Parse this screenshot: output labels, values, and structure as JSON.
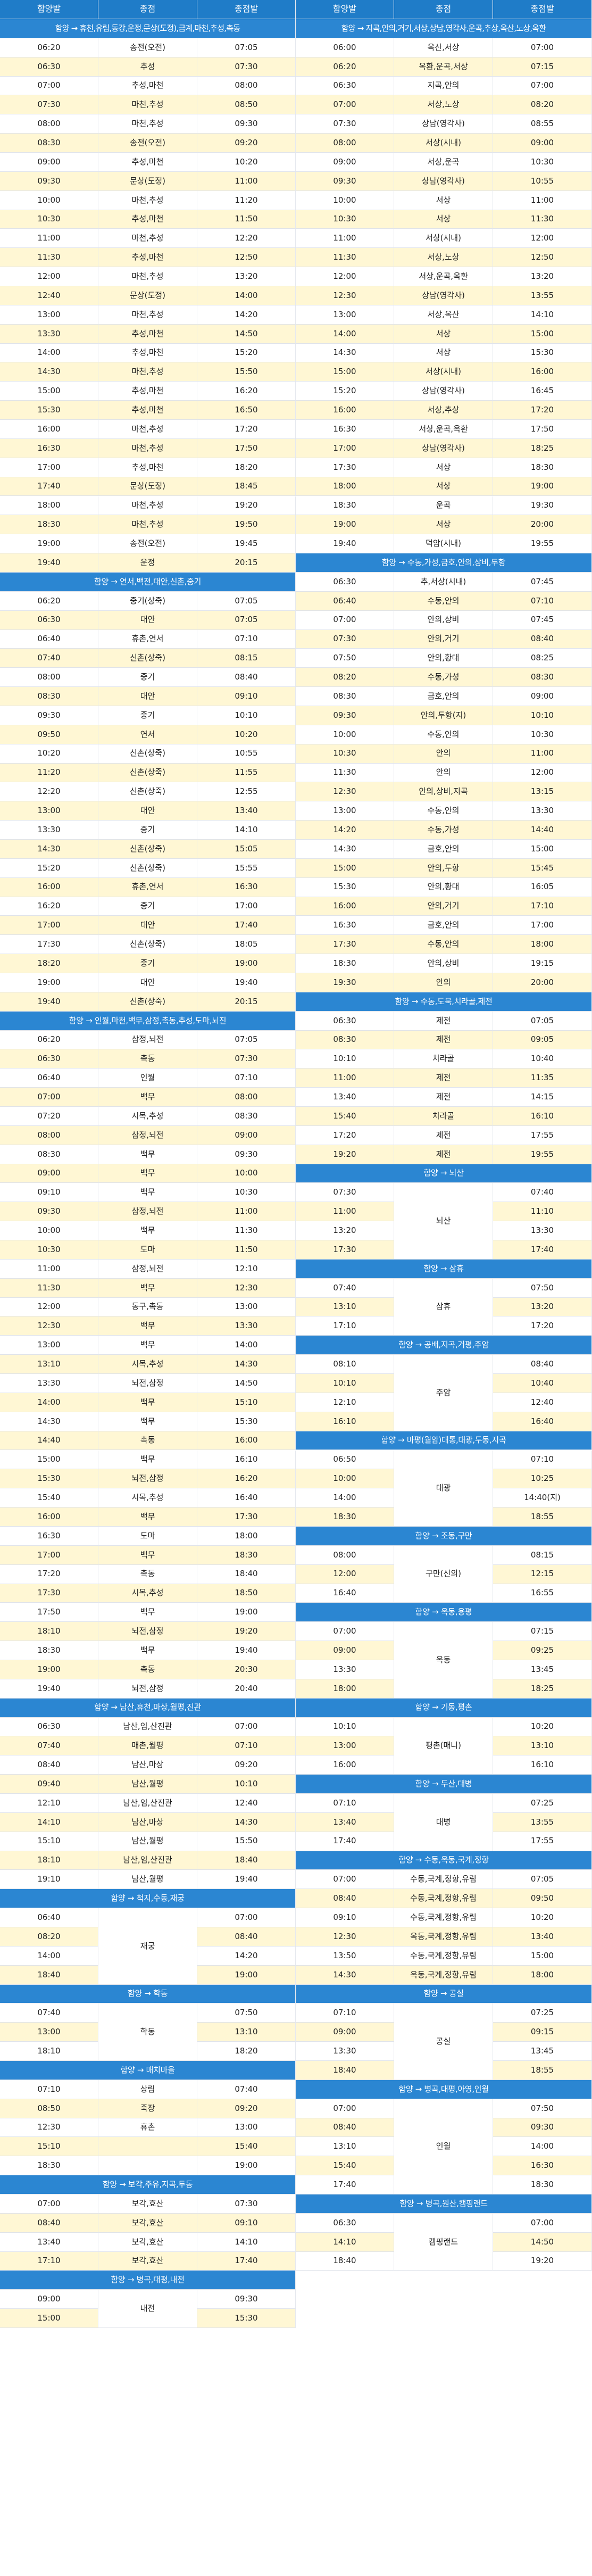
{
  "colors": {
    "header": "#1f7cc8",
    "section": "#2b86d2",
    "row_odd": "#ffffff",
    "row_even": "#fff7d4",
    "grid": "#dfe3ea"
  },
  "headers": [
    "함양발",
    "종점",
    "종점발",
    "함양발",
    "종점",
    "종점발"
  ],
  "left": [
    {
      "title": "함양 → 휴천,유림,동강,운정,문상(도정),금계,마천,추성,촉동"
    },
    {
      "r": [
        "06:20",
        "송전(오전)",
        "07:05"
      ]
    },
    {
      "r": [
        "06:30",
        "추성",
        "07:30"
      ]
    },
    {
      "r": [
        "07:00",
        "추성,마천",
        "08:00"
      ]
    },
    {
      "r": [
        "07:30",
        "마천,추성",
        "08:50"
      ]
    },
    {
      "r": [
        "08:00",
        "마천,추성",
        "09:30"
      ]
    },
    {
      "r": [
        "08:30",
        "송전(오전)",
        "09:20"
      ]
    },
    {
      "r": [
        "09:00",
        "추성,마천",
        "10:20"
      ]
    },
    {
      "r": [
        "09:30",
        "문상(도정)",
        "11:00"
      ]
    },
    {
      "r": [
        "10:00",
        "마천,추성",
        "11:20"
      ]
    },
    {
      "r": [
        "10:30",
        "추성,마천",
        "11:50"
      ]
    },
    {
      "r": [
        "11:00",
        "마천,추성",
        "12:20"
      ]
    },
    {
      "r": [
        "11:30",
        "추성,마천",
        "12:50"
      ]
    },
    {
      "r": [
        "12:00",
        "마천,추성",
        "13:20"
      ]
    },
    {
      "r": [
        "12:40",
        "문상(도정)",
        "14:00"
      ]
    },
    {
      "r": [
        "13:00",
        "마천,추성",
        "14:20"
      ]
    },
    {
      "r": [
        "13:30",
        "추성,마천",
        "14:50"
      ]
    },
    {
      "r": [
        "14:00",
        "추성,마천",
        "15:20"
      ]
    },
    {
      "r": [
        "14:30",
        "마천,추성",
        "15:50"
      ]
    },
    {
      "r": [
        "15:00",
        "추성,마천",
        "16:20"
      ]
    },
    {
      "r": [
        "15:30",
        "추성,마천",
        "16:50"
      ]
    },
    {
      "r": [
        "16:00",
        "마천,추성",
        "17:20"
      ]
    },
    {
      "r": [
        "16:30",
        "마천,추성",
        "17:50"
      ]
    },
    {
      "r": [
        "17:00",
        "추성,마천",
        "18:20"
      ]
    },
    {
      "r": [
        "17:40",
        "문상(도정)",
        "18:45"
      ]
    },
    {
      "r": [
        "18:00",
        "마천,추성",
        "19:20"
      ]
    },
    {
      "r": [
        "18:30",
        "마천,추성",
        "19:50"
      ]
    },
    {
      "r": [
        "19:00",
        "송전(오전)",
        "19:45"
      ]
    },
    {
      "r": [
        "19:40",
        "운정",
        "20:15"
      ]
    },
    {
      "title": "함양 → 연서,백전,대안,신촌,중기"
    },
    {
      "r": [
        "06:20",
        "중기(상죽)",
        "07:05"
      ]
    },
    {
      "r": [
        "06:30",
        "대안",
        "07:05"
      ]
    },
    {
      "r": [
        "06:40",
        "휴촌,연서",
        "07:10"
      ]
    },
    {
      "r": [
        "07:40",
        "신촌(상죽)",
        "08:15"
      ]
    },
    {
      "r": [
        "08:00",
        "중기",
        "08:40"
      ]
    },
    {
      "r": [
        "08:30",
        "대안",
        "09:10"
      ]
    },
    {
      "r": [
        "09:30",
        "중기",
        "10:10"
      ]
    },
    {
      "r": [
        "09:50",
        "연서",
        "10:20"
      ]
    },
    {
      "r": [
        "10:20",
        "신촌(상죽)",
        "10:55"
      ]
    },
    {
      "r": [
        "11:20",
        "신촌(상죽)",
        "11:55"
      ]
    },
    {
      "r": [
        "12:20",
        "신촌(상죽)",
        "12:55"
      ]
    },
    {
      "r": [
        "13:00",
        "대안",
        "13:40"
      ]
    },
    {
      "r": [
        "13:30",
        "중기",
        "14:10"
      ]
    },
    {
      "r": [
        "14:30",
        "신촌(상죽)",
        "15:05"
      ]
    },
    {
      "r": [
        "15:20",
        "신촌(상죽)",
        "15:55"
      ]
    },
    {
      "r": [
        "16:00",
        "휴촌,연서",
        "16:30"
      ]
    },
    {
      "r": [
        "16:20",
        "중기",
        "17:00"
      ]
    },
    {
      "r": [
        "17:00",
        "대안",
        "17:40"
      ]
    },
    {
      "r": [
        "17:30",
        "신촌(상죽)",
        "18:05"
      ]
    },
    {
      "r": [
        "18:20",
        "중기",
        "19:00"
      ]
    },
    {
      "r": [
        "19:00",
        "대안",
        "19:40"
      ]
    },
    {
      "r": [
        "19:40",
        "신촌(상죽)",
        "20:15"
      ]
    },
    {
      "title": "함양 → 인월,마천,백무,삼정,촉동,추성,도마,뇌진"
    },
    {
      "r": [
        "06:20",
        "삼정,뇌전",
        "07:05"
      ]
    },
    {
      "r": [
        "06:30",
        "촉동",
        "07:30"
      ]
    },
    {
      "r": [
        "06:40",
        "인월",
        "07:10"
      ]
    },
    {
      "r": [
        "07:00",
        "백무",
        "08:00"
      ]
    },
    {
      "r": [
        "07:20",
        "시목,추성",
        "08:30"
      ]
    },
    {
      "r": [
        "08:00",
        "삼정,뇌전",
        "09:00"
      ]
    },
    {
      "r": [
        "08:30",
        "백무",
        "09:30"
      ]
    },
    {
      "r": [
        "09:00",
        "백무",
        "10:00"
      ]
    },
    {
      "r": [
        "09:10",
        "백무",
        "10:30"
      ]
    },
    {
      "r": [
        "09:30",
        "삼정,뇌전",
        "11:00"
      ]
    },
    {
      "r": [
        "10:00",
        "백무",
        "11:30"
      ]
    },
    {
      "r": [
        "10:30",
        "도마",
        "11:50"
      ]
    },
    {
      "r": [
        "11:00",
        "삼정,뇌전",
        "12:10"
      ]
    },
    {
      "r": [
        "11:30",
        "백무",
        "12:30"
      ]
    },
    {
      "r": [
        "12:00",
        "동구,촉동",
        "13:00"
      ]
    },
    {
      "r": [
        "12:30",
        "백무",
        "13:30"
      ]
    },
    {
      "r": [
        "13:00",
        "백무",
        "14:00"
      ]
    },
    {
      "r": [
        "13:10",
        "시목,추성",
        "14:30"
      ]
    },
    {
      "r": [
        "13:30",
        "뇌전,삼정",
        "14:50"
      ]
    },
    {
      "r": [
        "14:00",
        "백무",
        "15:10"
      ]
    },
    {
      "r": [
        "14:30",
        "백무",
        "15:30"
      ]
    },
    {
      "r": [
        "14:40",
        "촉동",
        "16:00"
      ]
    },
    {
      "r": [
        "15:00",
        "백무",
        "16:10"
      ]
    },
    {
      "r": [
        "15:30",
        "뇌전,삼정",
        "16:20"
      ]
    },
    {
      "r": [
        "15:40",
        "시목,추성",
        "16:40"
      ]
    },
    {
      "r": [
        "16:00",
        "백무",
        "17:30"
      ]
    },
    {
      "r": [
        "16:30",
        "도마",
        "18:00"
      ]
    },
    {
      "r": [
        "17:00",
        "백무",
        "18:30"
      ]
    },
    {
      "r": [
        "17:20",
        "촉동",
        "18:40"
      ]
    },
    {
      "r": [
        "17:30",
        "시목,추성",
        "18:50"
      ]
    },
    {
      "r": [
        "17:50",
        "백무",
        "19:00"
      ]
    },
    {
      "r": [
        "18:10",
        "뇌전,삼정",
        "19:20"
      ]
    },
    {
      "r": [
        "18:30",
        "백무",
        "19:40"
      ]
    },
    {
      "r": [
        "19:00",
        "촉동",
        "20:30"
      ]
    },
    {
      "r": [
        "19:40",
        "뇌전,삼정",
        "20:40"
      ]
    },
    {
      "title": "함양 → 남산,휴천,마상,월평,진관"
    },
    {
      "r": [
        "06:30",
        "남산,임,산진관",
        "07:00"
      ]
    },
    {
      "r": [
        "07:40",
        "매촌,월평",
        "07:10"
      ]
    },
    {
      "r": [
        "08:40",
        "남산,마상",
        "09:20"
      ]
    },
    {
      "r": [
        "09:40",
        "남산,월평",
        "10:10"
      ]
    },
    {
      "r": [
        "12:10",
        "남산,임,산진관",
        "12:40"
      ]
    },
    {
      "r": [
        "14:10",
        "남산,마상",
        "14:30"
      ]
    },
    {
      "r": [
        "15:10",
        "남산,월평",
        "15:50"
      ]
    },
    {
      "r": [
        "18:10",
        "남산,임,산진관",
        "18:40"
      ]
    },
    {
      "r": [
        "19:10",
        "남산,월평",
        "19:40"
      ]
    },
    {
      "title": "함양 → 척지,수동,재궁"
    },
    {
      "g": "재궁",
      "r": [
        [
          "06:40",
          "07:00"
        ],
        [
          "08:20",
          "08:40"
        ],
        [
          "14:00",
          "14:20"
        ],
        [
          "18:40",
          "19:00"
        ]
      ]
    },
    {
      "title": "함양 → 학동"
    },
    {
      "g": "학동",
      "r": [
        [
          "07:40",
          "07:50"
        ],
        [
          "13:00",
          "13:10"
        ],
        [
          "18:10",
          "18:20"
        ]
      ]
    },
    {
      "title": "함양 → 매치마을"
    },
    {
      "r": [
        "07:10",
        "상림",
        "07:40"
      ]
    },
    {
      "r": [
        "08:50",
        "죽장",
        "09:20"
      ]
    },
    {
      "r": [
        "12:30",
        "휴촌",
        "13:00"
      ]
    },
    {
      "r": [
        "15:10",
        "",
        "15:40"
      ]
    },
    {
      "r": [
        "18:30",
        "",
        "19:00"
      ]
    },
    {
      "title": "함양 → 보각,주유,지곡,두동"
    },
    {
      "r": [
        "07:00",
        "보각,효산",
        "07:30"
      ]
    },
    {
      "r": [
        "08:40",
        "보각,효산",
        "09:10"
      ]
    },
    {
      "r": [
        "13:40",
        "보각,효산",
        "14:10"
      ]
    },
    {
      "r": [
        "17:10",
        "보각,효산",
        "17:40"
      ]
    },
    {
      "title": "함양 → 병곡,대평,내전"
    },
    {
      "g": "내전",
      "r": [
        [
          "09:00",
          "09:30"
        ],
        [
          "15:00",
          "15:30"
        ]
      ]
    }
  ],
  "right": [
    {
      "title": "함양 → 지곡,안의,거기,서상,상남,영각사,운곡,추상,옥산,노상,옥환"
    },
    {
      "r": [
        "06:00",
        "옥산,서상",
        "07:00"
      ]
    },
    {
      "r": [
        "06:20",
        "옥환,운곡,서상",
        "07:15"
      ]
    },
    {
      "r": [
        "06:30",
        "지곡,안의",
        "07:00"
      ]
    },
    {
      "r": [
        "07:00",
        "서상,노상",
        "08:20"
      ]
    },
    {
      "r": [
        "07:30",
        "상남(영각사)",
        "08:55"
      ]
    },
    {
      "r": [
        "08:00",
        "서상(시내)",
        "09:00"
      ]
    },
    {
      "r": [
        "09:00",
        "서상,운곡",
        "10:30"
      ]
    },
    {
      "r": [
        "09:30",
        "상남(영각사)",
        "10:55"
      ]
    },
    {
      "r": [
        "10:00",
        "서상",
        "11:00"
      ]
    },
    {
      "r": [
        "10:30",
        "서상",
        "11:30"
      ]
    },
    {
      "r": [
        "11:00",
        "서상(시내)",
        "12:00"
      ]
    },
    {
      "r": [
        "11:30",
        "서상,노상",
        "12:50"
      ]
    },
    {
      "r": [
        "12:00",
        "서상,운곡,옥환",
        "13:20"
      ]
    },
    {
      "r": [
        "12:30",
        "상남(영각사)",
        "13:55"
      ]
    },
    {
      "r": [
        "13:00",
        "서상,옥산",
        "14:10"
      ]
    },
    {
      "r": [
        "14:00",
        "서상",
        "15:00"
      ]
    },
    {
      "r": [
        "14:30",
        "서상",
        "15:30"
      ]
    },
    {
      "r": [
        "15:00",
        "서상(시내)",
        "16:00"
      ]
    },
    {
      "r": [
        "15:20",
        "상남(영각사)",
        "16:45"
      ]
    },
    {
      "r": [
        "16:00",
        "서상,추상",
        "17:20"
      ]
    },
    {
      "r": [
        "16:30",
        "서상,운곡,옥환",
        "17:50"
      ]
    },
    {
      "r": [
        "17:00",
        "상남(영각사)",
        "18:25"
      ]
    },
    {
      "r": [
        "17:30",
        "서상",
        "18:30"
      ]
    },
    {
      "r": [
        "18:00",
        "서상",
        "19:00"
      ]
    },
    {
      "r": [
        "18:30",
        "운곡",
        "19:30"
      ]
    },
    {
      "r": [
        "19:00",
        "서상",
        "20:00"
      ]
    },
    {
      "r": [
        "19:40",
        "덕암(시내)",
        "19:55"
      ]
    },
    {
      "title": "함양 → 수동,가성,금호,안의,상비,두항"
    },
    {
      "r": [
        "06:30",
        "추,서상(시내)",
        "07:45"
      ]
    },
    {
      "r": [
        "06:40",
        "수동,안의",
        "07:10"
      ]
    },
    {
      "r": [
        "07:00",
        "안의,상비",
        "07:45"
      ]
    },
    {
      "r": [
        "07:30",
        "안의,거기",
        "08:40"
      ]
    },
    {
      "r": [
        "07:50",
        "안의,황대",
        "08:25"
      ]
    },
    {
      "r": [
        "08:20",
        "수동,가성",
        "08:30"
      ]
    },
    {
      "r": [
        "08:30",
        "금호,안의",
        "09:00"
      ]
    },
    {
      "r": [
        "09:30",
        "안의,두항(지)",
        "10:10"
      ]
    },
    {
      "r": [
        "10:00",
        "수동,안의",
        "10:30"
      ]
    },
    {
      "r": [
        "10:30",
        "안의",
        "11:00"
      ]
    },
    {
      "r": [
        "11:30",
        "안의",
        "12:00"
      ]
    },
    {
      "r": [
        "12:30",
        "안의,상비,지곡",
        "13:15"
      ]
    },
    {
      "r": [
        "13:00",
        "수동,안의",
        "13:30"
      ]
    },
    {
      "r": [
        "14:20",
        "수동,가성",
        "14:40"
      ]
    },
    {
      "r": [
        "14:30",
        "금호,안의",
        "15:00"
      ]
    },
    {
      "r": [
        "15:00",
        "안의,두항",
        "15:45"
      ]
    },
    {
      "r": [
        "15:30",
        "안의,황대",
        "16:05"
      ]
    },
    {
      "r": [
        "16:00",
        "안의,거기",
        "17:10"
      ]
    },
    {
      "r": [
        "16:30",
        "금호,안의",
        "17:00"
      ]
    },
    {
      "r": [
        "17:30",
        "수동,안의",
        "18:00"
      ]
    },
    {
      "r": [
        "18:30",
        "안의,상비",
        "19:15"
      ]
    },
    {
      "r": [
        "19:30",
        "안의",
        "20:00"
      ]
    },
    {
      "title": "함양 → 수동,도북,치라골,제전"
    },
    {
      "r": [
        "06:30",
        "제전",
        "07:05"
      ]
    },
    {
      "r": [
        "08:30",
        "제전",
        "09:05"
      ]
    },
    {
      "r": [
        "10:10",
        "치라골",
        "10:40"
      ]
    },
    {
      "r": [
        "11:00",
        "제전",
        "11:35"
      ]
    },
    {
      "r": [
        "13:40",
        "제전",
        "14:15"
      ]
    },
    {
      "r": [
        "15:40",
        "치라골",
        "16:10"
      ]
    },
    {
      "r": [
        "17:20",
        "제전",
        "17:55"
      ]
    },
    {
      "r": [
        "19:20",
        "제전",
        "19:55"
      ]
    },
    {
      "title": "함양 → 뇌산"
    },
    {
      "g": "뇌산",
      "r": [
        [
          "07:30",
          "07:40"
        ],
        [
          "11:00",
          "11:10"
        ],
        [
          "13:20",
          "13:30"
        ],
        [
          "17:30",
          "17:40"
        ]
      ]
    },
    {
      "title": "함양 → 삼휴"
    },
    {
      "g": "삼휴",
      "r": [
        [
          "07:40",
          "07:50"
        ],
        [
          "13:10",
          "13:20"
        ],
        [
          "17:10",
          "17:20"
        ]
      ]
    },
    {
      "title": "함양 → 공배,지곡,거평,주암"
    },
    {
      "g": "주암",
      "r": [
        [
          "08:10",
          "08:40"
        ],
        [
          "10:10",
          "10:40"
        ],
        [
          "12:10",
          "12:40"
        ],
        [
          "16:10",
          "16:40"
        ]
      ]
    },
    {
      "title": "함양 → 마평(월암)대통,대광,두동,지곡"
    },
    {
      "g": "대광",
      "r": [
        [
          "06:50",
          "07:10"
        ],
        [
          "10:00",
          "10:25"
        ],
        [
          "14:00",
          "14:40(지)"
        ],
        [
          "18:30",
          "18:55"
        ]
      ]
    },
    {
      "title": "함양 → 조동,구만"
    },
    {
      "g": "구만(신의)",
      "r": [
        [
          "08:00",
          "08:15"
        ],
        [
          "12:00",
          "12:15"
        ],
        [
          "16:40",
          "16:55"
        ]
      ]
    },
    {
      "title": "함양 → 옥동,용평"
    },
    {
      "g": "옥동",
      "r": [
        [
          "07:00",
          "07:15"
        ],
        [
          "09:00",
          "09:25"
        ],
        [
          "13:30",
          "13:45"
        ],
        [
          "18:00",
          "18:25"
        ]
      ]
    },
    {
      "title": "함양 → 기동,평촌"
    },
    {
      "g": "평촌(매니)",
      "r": [
        [
          "10:10",
          "10:20"
        ],
        [
          "13:00",
          "13:10"
        ],
        [
          "16:00",
          "16:10"
        ]
      ]
    },
    {
      "title": "함양 → 두산,대병"
    },
    {
      "g": "대병",
      "r": [
        [
          "07:10",
          "07:25"
        ],
        [
          "13:40",
          "13:55"
        ],
        [
          "17:40",
          "17:55"
        ]
      ]
    },
    {
      "title": "함양 → 수동,옥동,국계,정항"
    },
    {
      "r": [
        "07:00",
        "수동,국계,정항,유림",
        "07:05"
      ]
    },
    {
      "r": [
        "08:40",
        "수동,국계,정항,유림",
        "09:50"
      ]
    },
    {
      "r": [
        "09:10",
        "수동,국계,정항,유림",
        "10:20"
      ]
    },
    {
      "r": [
        "12:30",
        "옥동,국계,정항,유림",
        "13:40"
      ]
    },
    {
      "r": [
        "13:50",
        "수동,국계,정항,유림",
        "15:00"
      ]
    },
    {
      "r": [
        "14:30",
        "옥동,국계,정항,유림",
        "18:00"
      ]
    },
    {
      "title": "함양 → 공실"
    },
    {
      "g": "공실",
      "r": [
        [
          "07:10",
          "07:25"
        ],
        [
          "09:00",
          "09:15"
        ],
        [
          "13:30",
          "13:45"
        ],
        [
          "18:40",
          "18:55"
        ]
      ]
    },
    {
      "title": "함양 → 병곡,대평,아영,인월"
    },
    {
      "g": "인월",
      "r": [
        [
          "07:00",
          "07:50"
        ],
        [
          "08:40",
          "09:30"
        ],
        [
          "13:10",
          "14:00"
        ],
        [
          "15:40",
          "16:30"
        ],
        [
          "17:40",
          "18:30"
        ]
      ]
    },
    {
      "title": "함양 → 병곡,원산,캠핑랜드"
    },
    {
      "g": "캠핑랜드",
      "r": [
        [
          "06:30",
          "07:00"
        ],
        [
          "14:10",
          "14:50"
        ],
        [
          "18:40",
          "19:20"
        ]
      ]
    }
  ]
}
